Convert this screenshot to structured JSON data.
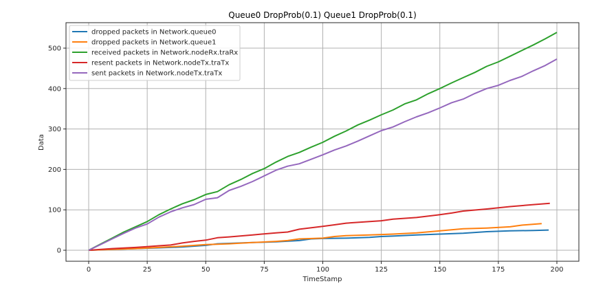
{
  "figure": {
    "title": "Queue0 DropProb(0.1) Queue1 DropProb(0.1)"
  },
  "chart_data": {
    "type": "line",
    "title": "Queue0 DropProb(0.1) Queue1 DropProb(0.1)",
    "xlabel": "TimeStamp",
    "ylabel": "Data",
    "xlim": [
      -10,
      210
    ],
    "ylim": [
      -28,
      563
    ],
    "xticks": [
      0,
      25,
      50,
      75,
      100,
      125,
      150,
      175,
      200
    ],
    "yticks": [
      0,
      100,
      200,
      300,
      400,
      500
    ],
    "grid": true,
    "legend_position": "upper left",
    "series": [
      {
        "name": "dropped packets in Network.queue0",
        "color": "#1f77b4",
        "x": [
          0,
          10,
          20,
          30,
          40,
          50,
          55,
          60,
          70,
          80,
          90,
          95,
          100,
          110,
          120,
          125,
          130,
          140,
          150,
          160,
          170,
          175,
          180,
          190,
          196.5
        ],
        "y": [
          0,
          2,
          4,
          6,
          8,
          12,
          16,
          17,
          19,
          21,
          24,
          28,
          29,
          30,
          32,
          34,
          35,
          38,
          40,
          42,
          46,
          47,
          48,
          49,
          50
        ]
      },
      {
        "name": "dropped packets in Network.queue1",
        "color": "#ff7f0e",
        "x": [
          0,
          10,
          20,
          30,
          40,
          50,
          55,
          60,
          70,
          80,
          85,
          90,
          100,
          105,
          110,
          120,
          130,
          140,
          150,
          160,
          170,
          180,
          185,
          193.5
        ],
        "y": [
          0,
          2,
          4,
          7,
          10,
          14,
          15,
          16,
          19,
          22,
          24,
          28,
          30,
          34,
          36,
          38,
          40,
          43,
          48,
          53,
          55,
          58,
          62,
          66
        ]
      },
      {
        "name": "received packets in Network.nodeRx.traRx",
        "color": "#2ca02c",
        "x": [
          0,
          5,
          10,
          15,
          20,
          25,
          30,
          35,
          40,
          45,
          50,
          55,
          60,
          65,
          70,
          75,
          80,
          85,
          90,
          95,
          100,
          105,
          110,
          115,
          120,
          125,
          130,
          135,
          140,
          145,
          150,
          155,
          160,
          165,
          170,
          175,
          180,
          185,
          190,
          195,
          200
        ],
        "y": [
          0,
          15,
          30,
          45,
          58,
          71,
          88,
          102,
          115,
          125,
          138,
          145,
          162,
          175,
          190,
          202,
          218,
          232,
          242,
          255,
          267,
          282,
          295,
          310,
          322,
          335,
          347,
          362,
          372,
          387,
          400,
          414,
          427,
          440,
          455,
          466,
          480,
          494,
          508,
          523,
          539
        ]
      },
      {
        "name": "resent packets in Network.nodeTx.traTx",
        "color": "#d62728",
        "x": [
          0,
          10,
          20,
          25,
          30,
          35,
          40,
          45,
          50,
          55,
          60,
          70,
          80,
          85,
          90,
          100,
          105,
          110,
          120,
          125,
          130,
          140,
          150,
          155,
          160,
          170,
          180,
          190,
          197
        ],
        "y": [
          0,
          4,
          7,
          9,
          11,
          13,
          18,
          22,
          25,
          31,
          33,
          38,
          43,
          45,
          52,
          59,
          63,
          67,
          71,
          73,
          77,
          81,
          88,
          92,
          97,
          102,
          108,
          113,
          116
        ]
      },
      {
        "name": "sent packets in Network.nodeTx.traTx",
        "color": "#9467bd",
        "x": [
          0,
          5,
          10,
          15,
          20,
          25,
          30,
          35,
          40,
          45,
          50,
          55,
          60,
          65,
          70,
          75,
          80,
          85,
          90,
          95,
          100,
          105,
          110,
          115,
          120,
          125,
          130,
          135,
          140,
          145,
          150,
          155,
          160,
          165,
          170,
          175,
          180,
          185,
          190,
          195,
          200
        ],
        "y": [
          0,
          14,
          28,
          42,
          55,
          65,
          82,
          95,
          105,
          113,
          126,
          130,
          148,
          158,
          170,
          184,
          198,
          208,
          214,
          225,
          236,
          248,
          258,
          270,
          283,
          296,
          305,
          318,
          330,
          340,
          352,
          365,
          374,
          388,
          400,
          408,
          420,
          430,
          444,
          457,
          473
        ]
      }
    ]
  },
  "legend": {
    "items": [
      {
        "label": "dropped packets in Network.queue0",
        "color": "#1f77b4"
      },
      {
        "label": "dropped packets in Network.queue1",
        "color": "#ff7f0e"
      },
      {
        "label": "received packets in Network.nodeRx.traRx",
        "color": "#2ca02c"
      },
      {
        "label": "resent packets in Network.nodeTx.traTx",
        "color": "#d62728"
      },
      {
        "label": "sent packets in Network.nodeTx.traTx",
        "color": "#9467bd"
      }
    ]
  }
}
